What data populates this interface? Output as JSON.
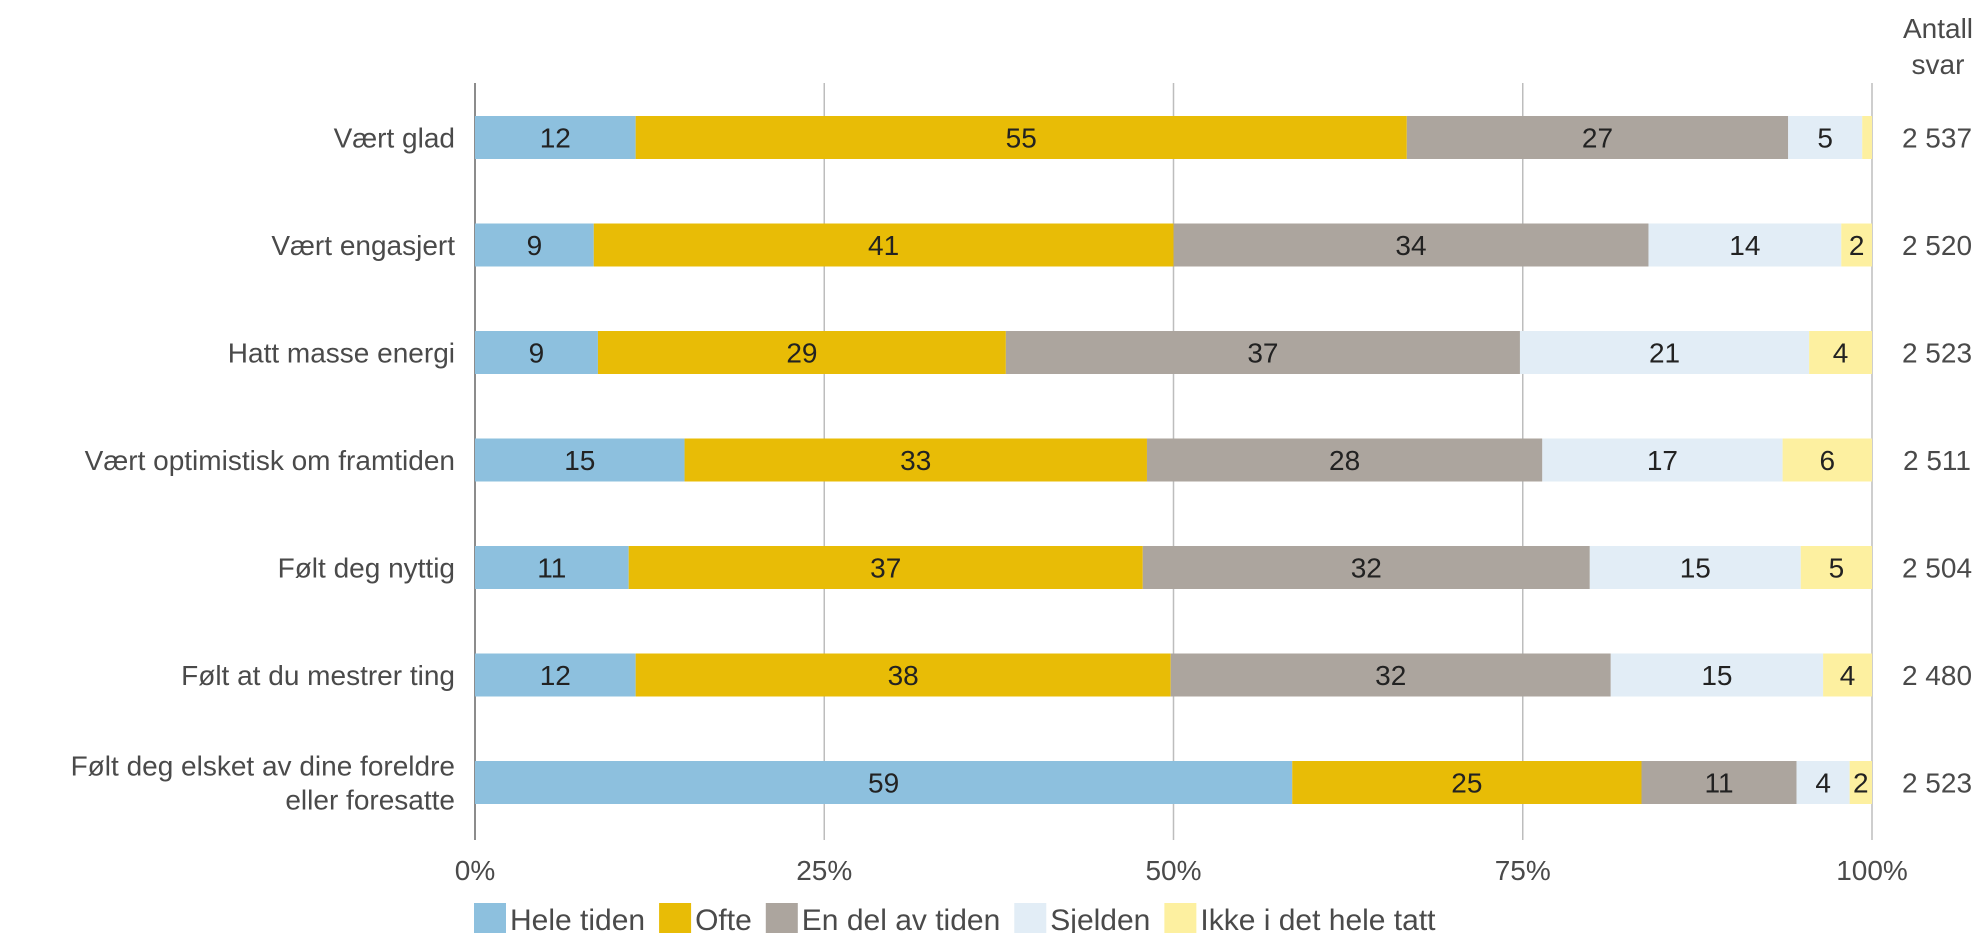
{
  "chart_data": {
    "type": "bar",
    "orientation": "horizontal",
    "stacked": true,
    "categories": [
      "Vært glad",
      "Vært engasjert",
      "Hatt masse energi",
      "Vært optimistisk om framtiden",
      "Følt deg nyttig",
      "Følt at du mestrer ting",
      [
        "Følt deg elsket av dine foreldre",
        "eller foresatte"
      ]
    ],
    "series": [
      {
        "name": "Hele tiden",
        "color": "#8dc0de",
        "values": [
          11.5,
          8.5,
          8.8,
          15.0,
          11.0,
          11.5,
          58.5
        ],
        "labels": [
          "12",
          "9",
          "9",
          "15",
          "11",
          "12",
          "59"
        ]
      },
      {
        "name": "Ofte",
        "color": "#e8bc06",
        "values": [
          55.2,
          41.5,
          29.2,
          33.1,
          36.8,
          38.3,
          25.0
        ],
        "labels": [
          "55",
          "41",
          "29",
          "33",
          "37",
          "38",
          "25"
        ]
      },
      {
        "name": "En del av tiden",
        "color": "#aca59e",
        "values": [
          27.3,
          34.0,
          36.8,
          28.3,
          32.0,
          31.5,
          11.1
        ],
        "labels": [
          "27",
          "34",
          "37",
          "28",
          "32",
          "32",
          "11"
        ]
      },
      {
        "name": "Sjelden",
        "color": "#e2edf6",
        "values": [
          5.3,
          13.8,
          20.7,
          17.2,
          15.1,
          15.2,
          3.8
        ],
        "labels": [
          "5",
          "14",
          "21",
          "17",
          "15",
          "15",
          "4"
        ]
      },
      {
        "name": "Ikke i det hele tatt",
        "color": "#fdf0a0",
        "values": [
          0.7,
          2.2,
          4.5,
          6.4,
          5.1,
          3.5,
          1.6
        ],
        "labels": [
          "",
          "2",
          "4",
          "6",
          "5",
          "4",
          "2"
        ]
      }
    ],
    "counts_header": [
      "Antall",
      "svar"
    ],
    "counts": [
      "2 537",
      "2 520",
      "2 523",
      "2 511",
      "2 504",
      "2 480",
      "2 523"
    ],
    "xlim": [
      0,
      100
    ],
    "xticks": [
      0,
      25,
      50,
      75,
      100
    ],
    "xtick_labels": [
      "0%",
      "25%",
      "50%",
      "75%",
      "100%"
    ],
    "grid": true,
    "legend_position": "bottom"
  }
}
